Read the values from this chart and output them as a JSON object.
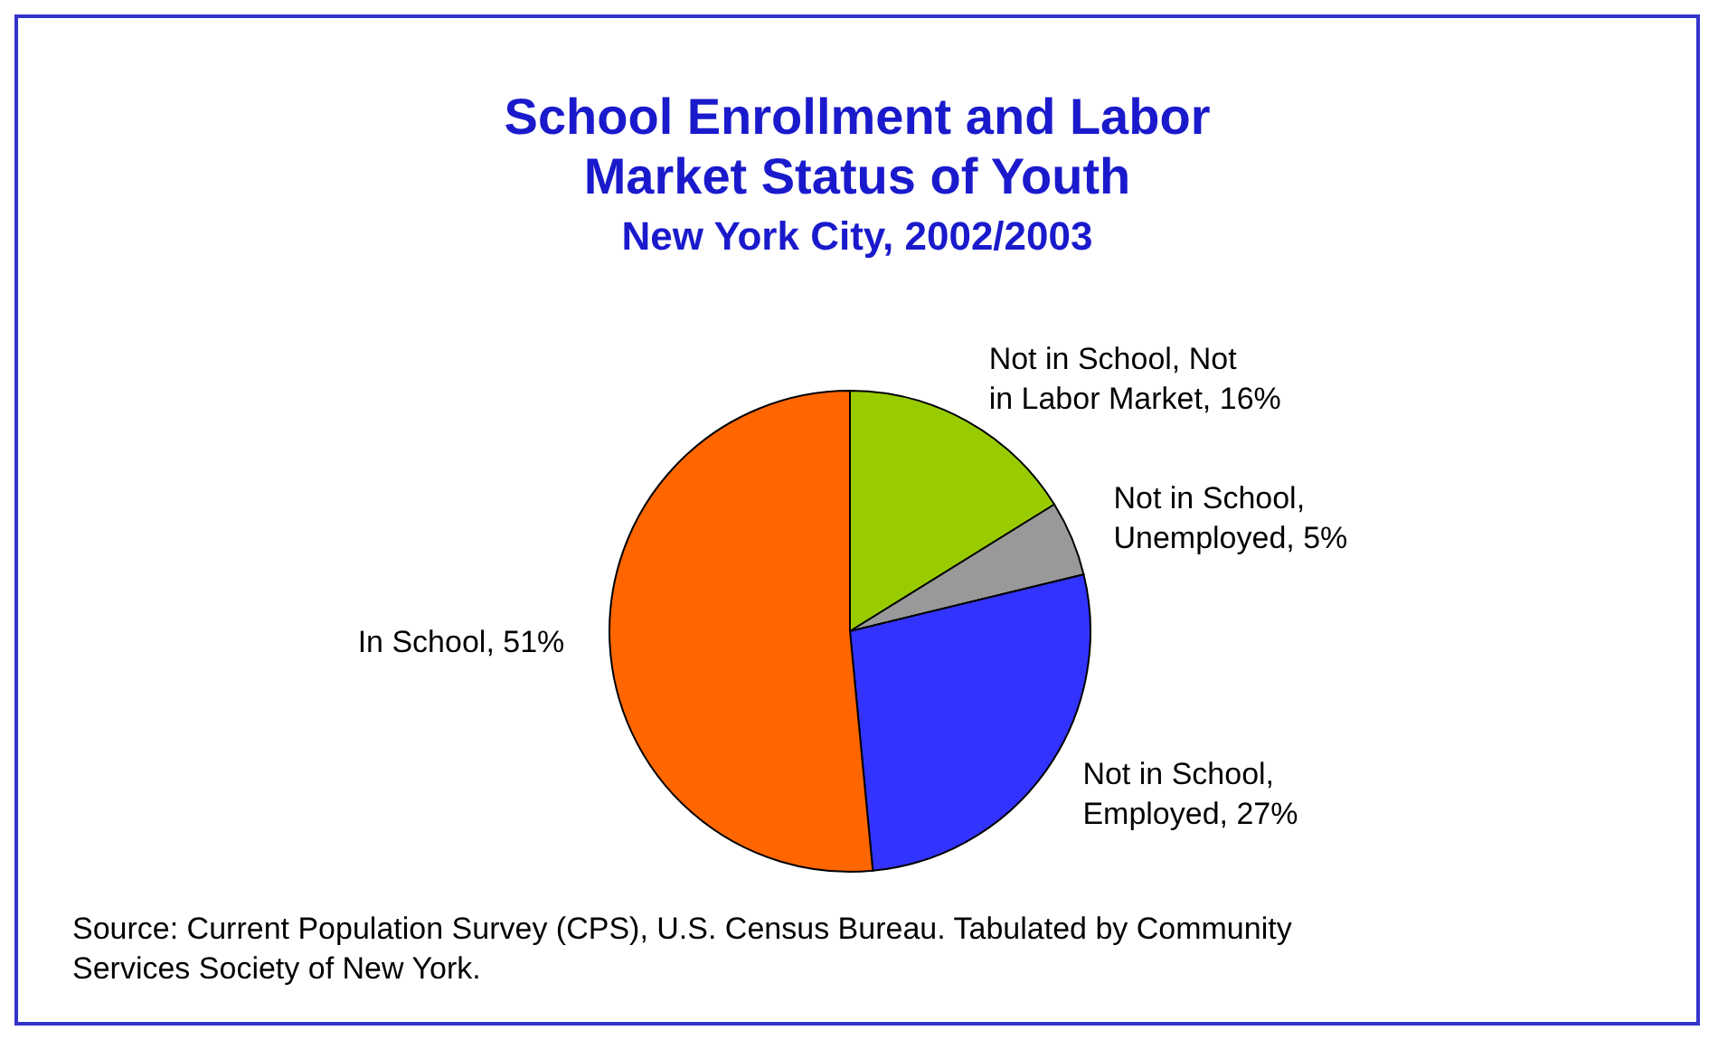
{
  "chart_data": {
    "type": "pie",
    "title": "School Enrollment and Labor Market Status of Youth",
    "subtitle": "New York City, 2002/2003",
    "categories": [
      "Not in School, Not in Labor Market",
      "Not in School, Unemployed",
      "Not in School, Employed",
      "In School"
    ],
    "values": [
      16,
      5,
      27,
      51
    ],
    "value_labels": [
      "16%",
      "5%",
      "27%",
      "51%"
    ],
    "colors": [
      "#99cc00",
      "#999999",
      "#3333ff",
      "#ff6600"
    ],
    "legend": false,
    "annotations": [
      "Source:  Current Population Survey (CPS), U.S. Census Bureau.  Tabulated by Community Services Society of New York."
    ]
  }
}
